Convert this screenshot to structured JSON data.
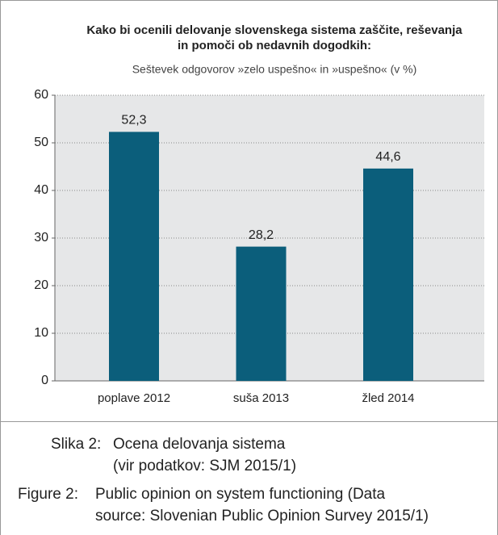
{
  "chart_data": {
    "type": "bar",
    "title": [
      "Kako bi ocenili delovanje slovenskega sistema zaščite, reševanja",
      "in pomoči ob nedavnih dogodkih:"
    ],
    "subtitle": "Seštevek odgovorov »zelo uspešno« in »uspešno« (v %)",
    "categories": [
      "poplave 2012",
      "suša 2013",
      "žled 2014"
    ],
    "values": [
      52.3,
      28.2,
      44.6
    ],
    "value_labels": [
      "52,3",
      "28,2",
      "44,6"
    ],
    "color": "#0b5e7b",
    "ylim": [
      0,
      60
    ],
    "yticks": [
      0,
      10,
      20,
      30,
      40,
      50,
      60
    ],
    "grid": true
  },
  "captions": [
    {
      "label": "Slika 2:",
      "lines": [
        "Ocena delovanja sistema",
        "(vir podatkov: SJM 2015/1)"
      ]
    },
    {
      "label": "Figure 2:",
      "lines": [
        "Public opinion on system functioning (Data",
        "source: Slovenian Public Opinion Survey 2015/1)"
      ]
    }
  ]
}
